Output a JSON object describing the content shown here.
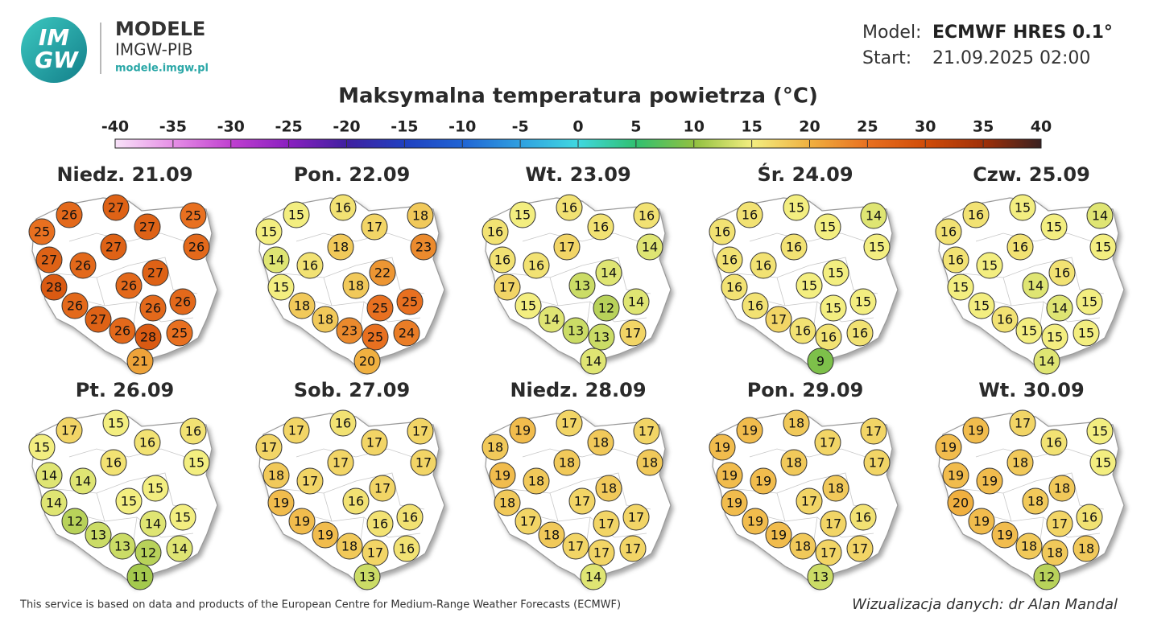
{
  "header": {
    "logo_top": "IM",
    "logo_bottom": "GW",
    "brand": "MODELE",
    "org": "IMGW-PIB",
    "url": "modele.imgw.pl",
    "model_label": "Model:",
    "model": "ECMWF HRES 0.1°",
    "start_label": "Start:",
    "start": "21.09.2025 02:00"
  },
  "title": "Maksymalna temperatura powietrza (°C)",
  "colorbar": {
    "ticks": [
      -40,
      -35,
      -30,
      -25,
      -20,
      -15,
      -10,
      -5,
      0,
      5,
      10,
      15,
      20,
      25,
      30,
      35,
      40
    ],
    "colors": [
      "#f8e2f8",
      "#e68fe6",
      "#c040d0",
      "#8a20c0",
      "#4020a0",
      "#2040c0",
      "#2064d4",
      "#30a0e0",
      "#40d8e0",
      "#30c070",
      "#90c040",
      "#f3ee80",
      "#f0b040",
      "#e87020",
      "#d04c08",
      "#a03008",
      "#3a2020"
    ]
  },
  "maps": [
    {
      "title": "Niedz. 21.09",
      "values": [
        25,
        26,
        27,
        27,
        25,
        26,
        27,
        26,
        27,
        27,
        28,
        26,
        26,
        26,
        26,
        27,
        26,
        28,
        25,
        21
      ]
    },
    {
      "title": "Pon. 22.09",
      "values": [
        15,
        15,
        16,
        17,
        18,
        23,
        14,
        16,
        18,
        22,
        15,
        18,
        18,
        25,
        25,
        18,
        23,
        25,
        24,
        20
      ]
    },
    {
      "title": "Wt. 23.09",
      "values": [
        16,
        15,
        16,
        16,
        16,
        14,
        16,
        16,
        17,
        14,
        17,
        13,
        15,
        14,
        12,
        14,
        13,
        13,
        17,
        14
      ]
    },
    {
      "title": "Śr. 24.09",
      "values": [
        16,
        16,
        15,
        15,
        14,
        15,
        16,
        16,
        16,
        15,
        16,
        15,
        16,
        15,
        15,
        17,
        16,
        16,
        16,
        9
      ]
    },
    {
      "title": "Czw. 25.09",
      "values": [
        16,
        16,
        15,
        15,
        14,
        15,
        16,
        15,
        16,
        16,
        15,
        14,
        15,
        15,
        14,
        16,
        15,
        15,
        15,
        14
      ]
    },
    {
      "title": "Pt. 26.09",
      "values": [
        15,
        17,
        15,
        16,
        16,
        15,
        14,
        14,
        16,
        15,
        14,
        15,
        12,
        15,
        14,
        13,
        13,
        12,
        14,
        11
      ]
    },
    {
      "title": "Sob. 27.09",
      "values": [
        17,
        17,
        16,
        17,
        17,
        17,
        18,
        17,
        17,
        17,
        19,
        16,
        19,
        16,
        16,
        19,
        18,
        17,
        16,
        13
      ]
    },
    {
      "title": "Niedz. 28.09",
      "values": [
        18,
        19,
        17,
        18,
        17,
        18,
        19,
        18,
        18,
        18,
        18,
        17,
        17,
        17,
        17,
        18,
        17,
        17,
        17,
        14
      ]
    },
    {
      "title": "Pon. 29.09",
      "values": [
        19,
        19,
        18,
        17,
        17,
        17,
        19,
        19,
        18,
        18,
        19,
        17,
        19,
        16,
        17,
        19,
        18,
        17,
        17,
        13
      ]
    },
    {
      "title": "Wt. 30.09",
      "values": [
        19,
        19,
        17,
        16,
        15,
        15,
        19,
        19,
        18,
        18,
        20,
        18,
        19,
        16,
        17,
        19,
        18,
        18,
        18,
        12
      ]
    }
  ],
  "footer": {
    "left": "This service is based on data and products of the European Centre for Medium-Range Weather Forecasts (ECMWF)",
    "right": "Wizualizacja danych: dr Alan Mandal"
  }
}
